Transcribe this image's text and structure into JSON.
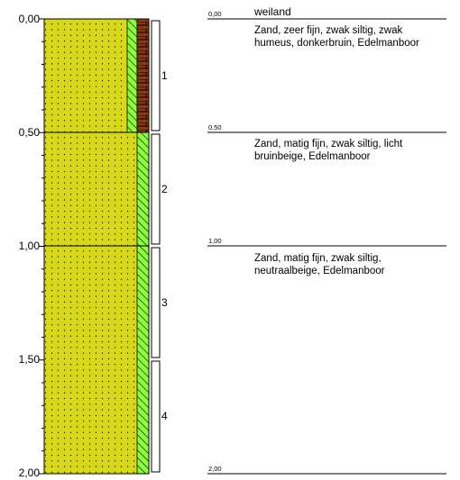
{
  "depth_axis": {
    "labels": [
      "0,00",
      "0,50",
      "1,00",
      "1,50",
      "2,00"
    ]
  },
  "samples": [
    "1",
    "2",
    "3",
    "4"
  ],
  "layers": [
    {
      "top_label": "0,00",
      "title": "weiland",
      "description": "Zand, zeer fijn, zwak siltig, zwak\nhumeus, donkerbruin, Edelmanboor"
    },
    {
      "top_label": "0,50",
      "description": "Zand, matig fijn, zwak siltig, licht\nbruinbeige, Edelmanboor"
    },
    {
      "top_label": "1,00",
      "description": "Zand, matig fijn, zwak siltig,\nneutraalbeige, Edelmanboor"
    }
  ],
  "bottom_label": "2,00",
  "colors": {
    "sand": "#d8d81a",
    "silt_hatch": "#8cff3c",
    "humus": "#8b3a10"
  }
}
